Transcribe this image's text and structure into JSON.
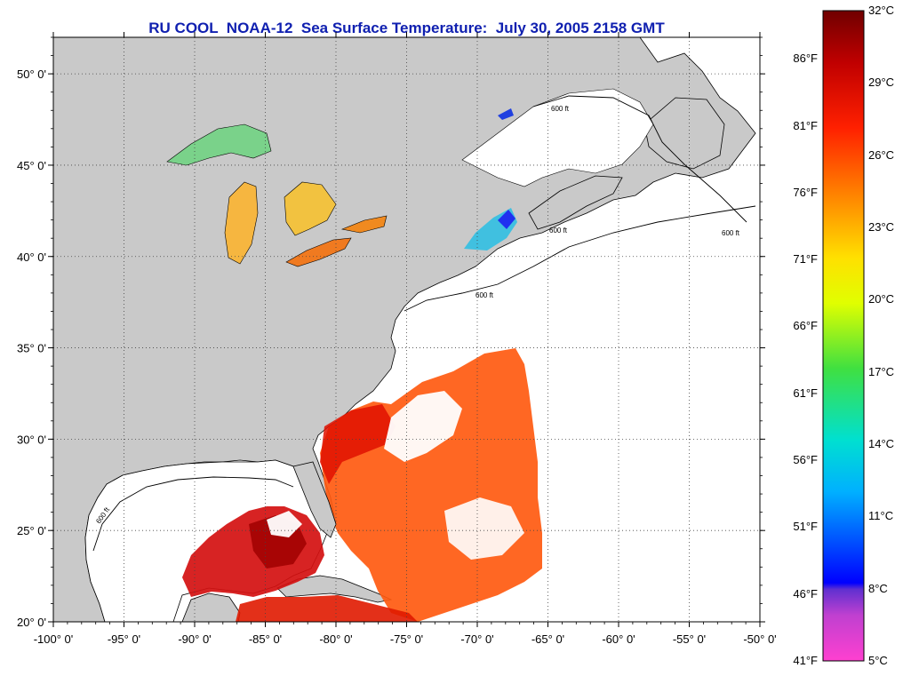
{
  "title": "RU COOL  NOAA-12  Sea Surface Temperature:  July 30, 2005 2158 GMT",
  "map": {
    "extent": {
      "lon": [
        -100,
        -50
      ],
      "lat": [
        20,
        52
      ]
    },
    "lat_ticks": [
      {
        "value": 20,
        "label": "20° 0'"
      },
      {
        "value": 25,
        "label": "25° 0'"
      },
      {
        "value": 30,
        "label": "30° 0'"
      },
      {
        "value": 35,
        "label": "35° 0'"
      },
      {
        "value": 40,
        "label": "40° 0'"
      },
      {
        "value": 45,
        "label": "45° 0'"
      },
      {
        "value": 50,
        "label": "50° 0'"
      }
    ],
    "lon_ticks": [
      {
        "value": -100,
        "label": "-100° 0'"
      },
      {
        "value": -95,
        "label": "-95° 0'"
      },
      {
        "value": -90,
        "label": "-90° 0'"
      },
      {
        "value": -85,
        "label": "-85° 0'"
      },
      {
        "value": -80,
        "label": "-80° 0'"
      },
      {
        "value": -75,
        "label": "-75° 0'"
      },
      {
        "value": -70,
        "label": "-70° 0'"
      },
      {
        "value": -65,
        "label": "-65° 0'"
      },
      {
        "value": -60,
        "label": "-60° 0'"
      },
      {
        "value": -55,
        "label": "-55° 0'"
      },
      {
        "value": -50,
        "label": "-50° 0'"
      }
    ],
    "contour_label": "600 ft",
    "colors": {
      "land": "#c9c9c9",
      "ocean": "#ffffff",
      "grid": "#555555"
    }
  },
  "colorbar": {
    "range_c": [
      5,
      32
    ],
    "celsius_labels": [
      "32°C",
      "29°C",
      "26°C",
      "23°C",
      "20°C",
      "17°C",
      "14°C",
      "11°C",
      "8°C",
      "5°C"
    ],
    "fahrenheit_labels": [
      "86°F",
      "81°F",
      "76°F",
      "71°F",
      "66°F",
      "61°F",
      "56°F",
      "51°F",
      "46°F",
      "41°F"
    ],
    "fahrenheit_values": [
      86,
      81,
      76,
      71,
      66,
      61,
      56,
      51,
      46,
      41
    ],
    "stops": [
      "#ff40d0",
      "#9040c0",
      "#4a20d0",
      "#0000ff",
      "#00a0ff",
      "#00e0e0",
      "#30e060",
      "#c0ff00",
      "#ffff00",
      "#ffc000",
      "#ff7000",
      "#ff1a00",
      "#c00000",
      "#7a0000"
    ]
  }
}
